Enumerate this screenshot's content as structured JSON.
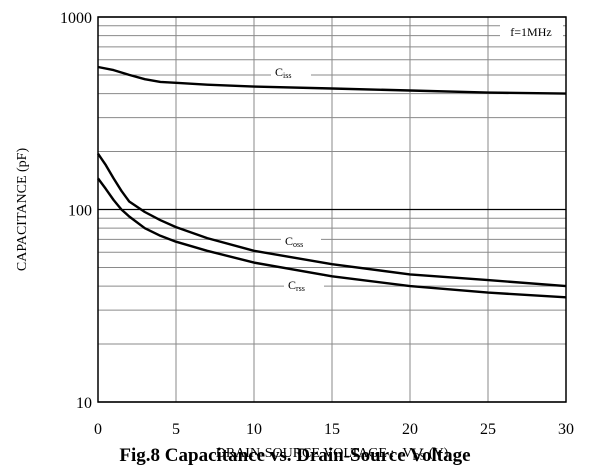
{
  "chart_data": {
    "type": "line",
    "title": "",
    "caption": "Fig.8 Capacitance vs. Drain-Source Voltage",
    "xlabel": {
      "text": "DRAIN-SOURCE VOLTAGE : -V",
      "sub": "DS",
      "suffix": " (V)"
    },
    "ylabel": "CAPACITANCE (pF)",
    "x_scale": "linear",
    "y_scale": "log",
    "xlim": [
      0,
      30
    ],
    "ylim": [
      10,
      1000
    ],
    "x_ticks": [
      0,
      5,
      10,
      15,
      20,
      25,
      30
    ],
    "y_ticks": [
      10,
      100,
      1000
    ],
    "grid": true,
    "annotation": "f=1MHz",
    "series": [
      {
        "name": "C",
        "name_sub": "iss",
        "x": [
          0,
          1,
          2,
          3,
          4,
          5,
          7,
          10,
          15,
          20,
          25,
          30
        ],
        "values": [
          550,
          530,
          500,
          475,
          460,
          455,
          445,
          435,
          425,
          415,
          405,
          400
        ]
      },
      {
        "name": "C",
        "name_sub": "oss",
        "x": [
          0,
          0.5,
          1,
          1.5,
          2,
          3,
          4,
          5,
          7,
          10,
          15,
          20,
          25,
          30
        ],
        "values": [
          195,
          170,
          145,
          125,
          110,
          97,
          88,
          81,
          71,
          61,
          52,
          46,
          43,
          40
        ]
      },
      {
        "name": "C",
        "name_sub": "rss",
        "x": [
          0,
          0.5,
          1,
          1.5,
          2,
          3,
          4,
          5,
          7,
          10,
          15,
          20,
          25,
          30
        ],
        "values": [
          145,
          128,
          112,
          100,
          92,
          80,
          73,
          68,
          61,
          53,
          45,
          40,
          37,
          35
        ]
      }
    ]
  }
}
